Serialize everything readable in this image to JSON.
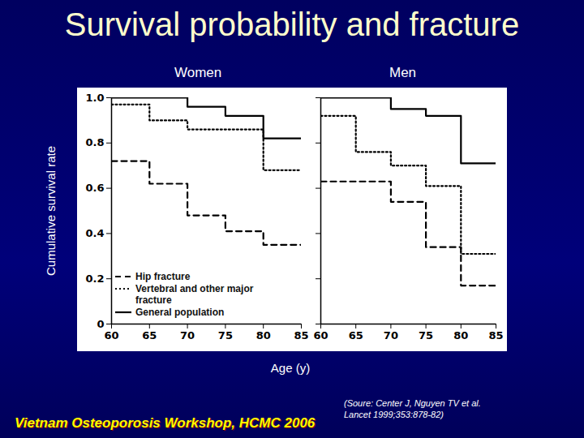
{
  "title": "Survival probability and fracture",
  "y_label": "Cumulative survival rate",
  "x_label": "Age (y)",
  "footer": "Vietnam Osteoporosis Workshop, HCMC 2006",
  "source": "(Soure: Center J, Nguyen TV et al. Lancet 1999;353:878-82)",
  "chart_data": [
    {
      "type": "line",
      "title": "Women",
      "legend": "bottom-left",
      "x": [
        60,
        65,
        70,
        75,
        80,
        85
      ],
      "xlim": [
        60,
        85
      ],
      "xticks": [
        60,
        65,
        70,
        75,
        80,
        85
      ],
      "ylim": [
        0,
        1
      ],
      "yticks": [
        0,
        0.2,
        0.4,
        0.6,
        0.8,
        {
          "value": 1,
          "label": "1.0"
        }
      ],
      "series": [
        {
          "name": "Hip fracture",
          "color": "#000000",
          "line_style": "dashed",
          "values": [
            0.72,
            0.62,
            0.48,
            0.41,
            0.35,
            0.35
          ]
        },
        {
          "name": "Vertebral and other major fracture",
          "color": "#000000",
          "line_style": "dotted",
          "values": [
            0.97,
            0.9,
            0.86,
            0.86,
            0.68,
            0.68
          ]
        },
        {
          "name": "General population",
          "color": "#000000",
          "line_style": "solid",
          "values": [
            1.0,
            1.0,
            0.96,
            0.92,
            0.82,
            0.82
          ]
        }
      ]
    },
    {
      "type": "line",
      "title": "Men",
      "tick_labels": "x",
      "x": [
        60,
        65,
        70,
        75,
        80,
        85
      ],
      "xlim": [
        60,
        85
      ],
      "xticks": [
        60,
        65,
        70,
        75,
        80,
        85
      ],
      "ylim": [
        0,
        1
      ],
      "yticks": [
        0,
        0.2,
        0.4,
        0.6,
        0.8,
        {
          "value": 1,
          "label": "1.0"
        }
      ],
      "series": [
        {
          "name": "Hip fracture",
          "color": "#000000",
          "line_style": "dashed",
          "values": [
            0.63,
            0.63,
            0.54,
            0.34,
            0.17,
            0.17
          ]
        },
        {
          "name": "Vertebral and other major fracture",
          "color": "#000000",
          "line_style": "dotted",
          "values": [
            0.92,
            0.76,
            0.7,
            0.61,
            0.31,
            0.31
          ]
        },
        {
          "name": "General population",
          "color": "#000000",
          "line_style": "solid",
          "values": [
            1.0,
            1.0,
            0.95,
            0.92,
            0.71,
            0.71
          ]
        }
      ]
    }
  ]
}
